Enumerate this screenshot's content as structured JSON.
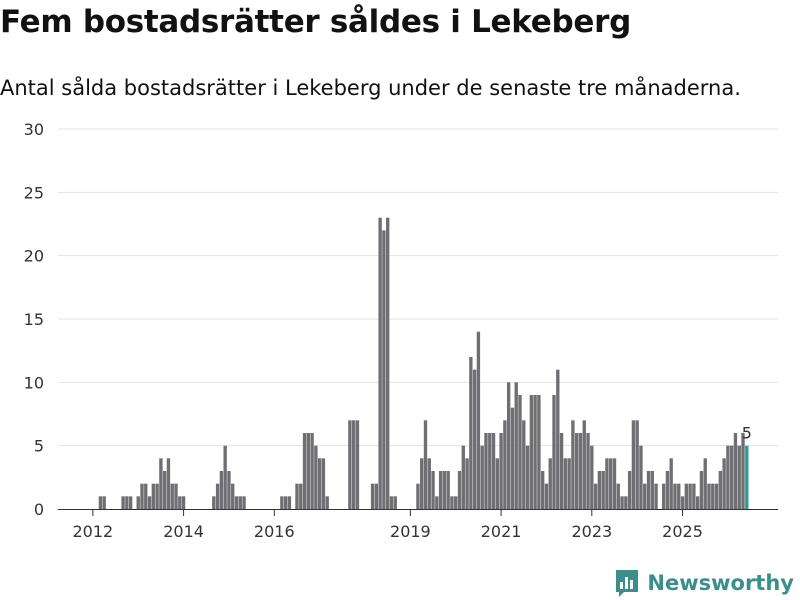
{
  "title": "Fem bostadsrätter såldes i Lekeberg",
  "subtitle": "Antal sålda bostadsrätter i Lekeberg under de senaste tre månaderna.",
  "brand": {
    "name": "Newsworthy",
    "color": "#3a8f8b",
    "icon": "newsworthy-logo-icon"
  },
  "chart_data": {
    "type": "bar",
    "title": "Fem bostadsrätter såldes i Lekeberg",
    "xlabel": "",
    "ylabel": "",
    "ylim": [
      0,
      30
    ],
    "yticks": [
      "0",
      "5",
      "10",
      "15",
      "20",
      "25",
      "30"
    ],
    "xticks": [
      {
        "label": "2012",
        "index": 6
      },
      {
        "label": "2014",
        "index": 30
      },
      {
        "label": "2016",
        "index": 54
      },
      {
        "label": "2019",
        "index": 90
      },
      {
        "label": "2021",
        "index": 114
      },
      {
        "label": "2023",
        "index": 138
      },
      {
        "label": "2025",
        "index": 162
      }
    ],
    "series_color": "#6e6e73",
    "highlight_color": "#2a9d94",
    "highlight_index": 179,
    "data_label": "5",
    "values": [
      0,
      0,
      0,
      0,
      0,
      0,
      0,
      0,
      1,
      1,
      0,
      0,
      0,
      0,
      1,
      1,
      1,
      0,
      1,
      2,
      2,
      1,
      2,
      2,
      4,
      3,
      4,
      2,
      2,
      1,
      1,
      0,
      0,
      0,
      0,
      0,
      0,
      0,
      1,
      2,
      3,
      5,
      3,
      2,
      1,
      1,
      1,
      0,
      0,
      0,
      0,
      0,
      0,
      0,
      0,
      0,
      1,
      1,
      1,
      0,
      2,
      2,
      6,
      6,
      6,
      5,
      4,
      4,
      1,
      0,
      0,
      0,
      0,
      0,
      7,
      7,
      7,
      0,
      0,
      0,
      2,
      2,
      23,
      22,
      23,
      1,
      1,
      0,
      0,
      0,
      0,
      0,
      2,
      4,
      7,
      4,
      3,
      1,
      3,
      3,
      3,
      1,
      1,
      3,
      5,
      4,
      12,
      11,
      14,
      5,
      6,
      6,
      6,
      4,
      6,
      7,
      10,
      8,
      10,
      9,
      7,
      5,
      9,
      9,
      9,
      3,
      2,
      4,
      9,
      11,
      6,
      4,
      4,
      7,
      6,
      6,
      7,
      6,
      5,
      2,
      3,
      3,
      4,
      4,
      4,
      2,
      1,
      1,
      3,
      7,
      7,
      5,
      2,
      3,
      3,
      2,
      0,
      2,
      3,
      4,
      2,
      2,
      1,
      2,
      2,
      2,
      1,
      3,
      4,
      2,
      2,
      2,
      3,
      4,
      5,
      5,
      6,
      5,
      6,
      5
    ]
  }
}
